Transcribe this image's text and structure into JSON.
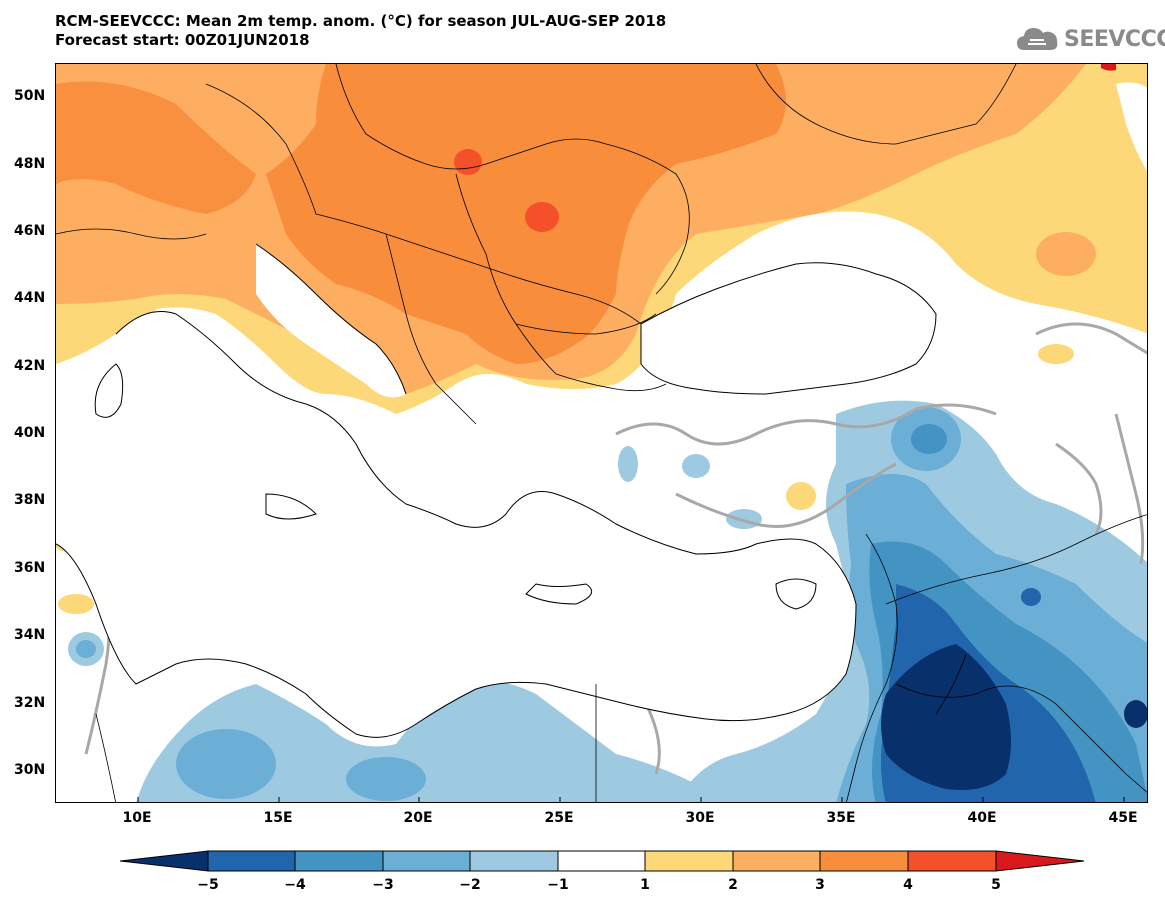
{
  "header": {
    "title_line1": "RCM-SEEVCCC: Mean 2m temp. anom. (°C) for season JUL-AUG-SEP 2018",
    "title_line2": "Forecast start: 00Z01JUN2018"
  },
  "logo": {
    "icon": "cloud-logo-icon",
    "text": "SEEVCCC"
  },
  "map": {
    "lat_labels": [
      "50N",
      "48N",
      "46N",
      "44N",
      "42N",
      "40N",
      "38N",
      "36N",
      "34N",
      "32N",
      "30N"
    ],
    "lon_labels": [
      "10E",
      "15E",
      "20E",
      "25E",
      "30E",
      "35E",
      "40E",
      "45E"
    ]
  },
  "colorbar": {
    "labels": [
      "−5",
      "−4",
      "−3",
      "−2",
      "−1",
      "1",
      "2",
      "3",
      "4",
      "5"
    ],
    "colors": [
      "#08306b",
      "#2166ac",
      "#4393c3",
      "#6baed6",
      "#9ecae1",
      "#ffffff",
      "#fdd878",
      "#fdae61",
      "#f88d3c",
      "#f4502a",
      "#d7191c"
    ]
  }
}
